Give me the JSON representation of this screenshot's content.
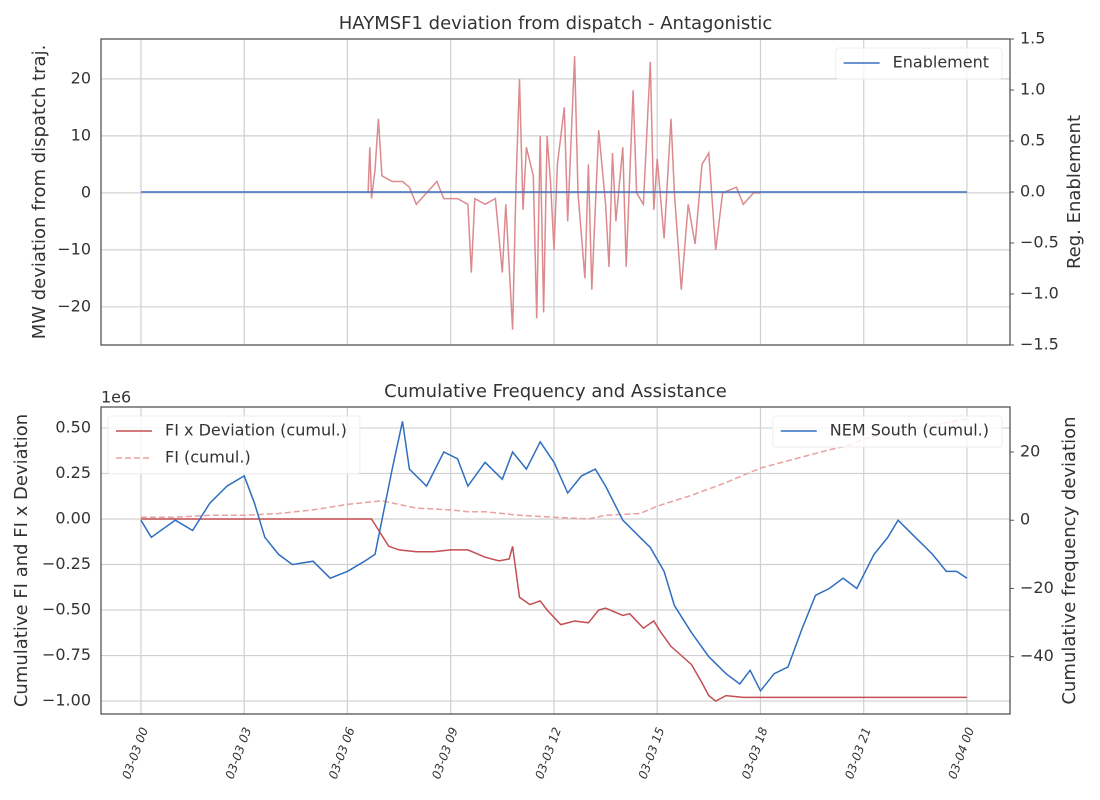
{
  "chart_data": [
    {
      "type": "line",
      "title": "HAYMSF1 deviation from dispatch - Antagonistic",
      "ylabel": "MW deviation from dispatch traj.",
      "y2label": "Reg. Enablement",
      "xlim": [
        -1.16,
        25.25
      ],
      "xticks": [
        0,
        3,
        6,
        9,
        12,
        15,
        18,
        21,
        24
      ],
      "ylim": [
        -26.7,
        27.0
      ],
      "yticks": [
        {
          "value": -20,
          "label": "−20"
        },
        {
          "value": -10,
          "label": "−10"
        },
        0,
        10,
        20
      ],
      "y2lim": [
        -1.5,
        1.5
      ],
      "y2ticks": [
        {
          "value": -1.5,
          "label": "−1.5"
        },
        {
          "value": -1,
          "label": "−1.0"
        },
        {
          "value": -0.5,
          "label": "−0.5"
        },
        {
          "value": 0,
          "label": "0.0"
        },
        0.5,
        {
          "value": 1,
          "label": "1.0"
        },
        1.5
      ],
      "grid": true,
      "legend": "upper right",
      "series": [
        {
          "color": "#dd8a8e",
          "x": [
            6.6,
            6.65,
            6.7,
            6.8,
            6.9,
            7.0,
            7.3,
            7.6,
            7.8,
            8.0,
            8.3,
            8.6,
            8.8,
            9.2,
            9.5,
            9.6,
            9.7,
            10.0,
            10.3,
            10.5,
            10.6,
            10.8,
            10.9,
            11.0,
            11.1,
            11.2,
            11.4,
            11.5,
            11.6,
            11.7,
            11.8,
            11.9,
            12.0,
            12.1,
            12.3,
            12.4,
            12.6,
            12.7,
            12.9,
            13.0,
            13.1,
            13.3,
            13.5,
            13.6,
            13.7,
            13.8,
            14.0,
            14.1,
            14.3,
            14.4,
            14.6,
            14.8,
            14.9,
            15.0,
            15.2,
            15.4,
            15.5,
            15.7,
            15.9,
            16.1,
            16.3,
            16.5,
            16.7,
            16.9,
            17.3,
            17.5,
            17.8,
            18.0
          ],
          "values": [
            0,
            8,
            -1,
            4,
            13,
            3,
            2,
            2,
            1,
            -2,
            0,
            2,
            -1,
            -1,
            -2,
            -14,
            -1,
            -2,
            -1,
            -14,
            -2,
            -24,
            2,
            20,
            -3,
            8,
            3,
            -22,
            10,
            -21,
            10,
            2,
            -10,
            5,
            15,
            -5,
            24,
            0,
            -15,
            5,
            -17,
            11,
            -2,
            -13,
            7,
            -5,
            8,
            -13,
            18,
            0,
            -2,
            23,
            -3,
            6,
            -8,
            13,
            0,
            -17,
            -2,
            -9,
            5,
            7,
            -10,
            0,
            1,
            -2,
            0,
            0
          ]
        },
        {
          "name": "Enablement",
          "color": "#3d6fbf",
          "axis": "y2",
          "x": [
            0,
            24
          ],
          "values": [
            0,
            0
          ]
        }
      ]
    },
    {
      "type": "line",
      "title": "Cumulative Frequency and Assistance",
      "ylabel": "Cumulative FI and FI x Deviation",
      "y2label": "Cumulative frequency deviation",
      "y_offset_label": "1e6",
      "xlim": [
        -1.16,
        25.25
      ],
      "xticks": [
        {
          "value": 0,
          "label": "03-03 00"
        },
        {
          "value": 3,
          "label": "03-03 03"
        },
        {
          "value": 6,
          "label": "03-03 06"
        },
        {
          "value": 9,
          "label": "03-03 09"
        },
        {
          "value": 12,
          "label": "03-03 12"
        },
        {
          "value": 15,
          "label": "03-03 15"
        },
        {
          "value": 18,
          "label": "03-03 18"
        },
        {
          "value": 21,
          "label": "03-03 21"
        },
        {
          "value": 24,
          "label": "03-04 00"
        }
      ],
      "ylim": [
        -1.071,
        0.615
      ],
      "yticks": [
        {
          "value": -1,
          "label": "−1.00"
        },
        {
          "value": -0.75,
          "label": "−0.75"
        },
        {
          "value": -0.5,
          "label": "−0.50"
        },
        {
          "value": -0.25,
          "label": "−0.25"
        },
        {
          "value": 0,
          "label": "0.00"
        },
        0.25,
        {
          "value": 0.5,
          "label": "0.50"
        }
      ],
      "y2lim": [
        -56.8,
        33.2
      ],
      "y2ticks": [
        {
          "value": -40,
          "label": "−40"
        },
        {
          "value": -20,
          "label": "−20"
        },
        0,
        20
      ],
      "grid": true,
      "legend": "upper left",
      "legend2": "upper right",
      "series": [
        {
          "name": "FI x Deviation (cumul.)",
          "color": "#c44e52",
          "x": [
            0,
            3,
            6,
            6.7,
            6.9,
            7.2,
            7.5,
            8,
            8.5,
            9,
            9.5,
            10,
            10.4,
            10.7,
            10.8,
            11,
            11.3,
            11.6,
            11.8,
            12.2,
            12.6,
            13,
            13.3,
            13.5,
            14,
            14.2,
            14.6,
            14.9,
            15.1,
            15.4,
            15.7,
            16,
            16.3,
            16.5,
            16.7,
            17,
            17.5,
            18,
            20,
            24
          ],
          "values": [
            0,
            0,
            0,
            0,
            -0.06,
            -0.15,
            -0.17,
            -0.18,
            -0.18,
            -0.17,
            -0.17,
            -0.21,
            -0.23,
            -0.22,
            -0.15,
            -0.43,
            -0.47,
            -0.45,
            -0.5,
            -0.58,
            -0.56,
            -0.57,
            -0.5,
            -0.49,
            -0.53,
            -0.52,
            -0.6,
            -0.56,
            -0.62,
            -0.7,
            -0.75,
            -0.8,
            -0.9,
            -0.97,
            -1.0,
            -0.97,
            -0.98,
            -0.98,
            -0.98,
            -0.98
          ]
        },
        {
          "name": "FI (cumul.)",
          "color": "#e8a0a0",
          "dash": true,
          "x": [
            0,
            1,
            2,
            3,
            4,
            5,
            6,
            7,
            8,
            9,
            9.5,
            10,
            11,
            12,
            13,
            13.5,
            14.5,
            15,
            16,
            17,
            18,
            19,
            20,
            20.5,
            21,
            22,
            24
          ],
          "values": [
            0.01,
            0.01,
            0.02,
            0.02,
            0.03,
            0.05,
            0.08,
            0.1,
            0.06,
            0.05,
            0.04,
            0.04,
            0.02,
            0.01,
            0.0,
            0.02,
            0.03,
            0.07,
            0.13,
            0.2,
            0.28,
            0.33,
            0.38,
            0.4,
            0.44,
            0.48,
            0.55
          ]
        },
        {
          "name": "NEM South (cumul.)",
          "color": "#2f6ec0",
          "axis": "y2",
          "x": [
            0,
            0.3,
            1,
            1.5,
            2,
            2.5,
            3,
            3.3,
            3.6,
            4,
            4.4,
            5,
            5.5,
            6,
            6.5,
            6.8,
            7,
            7.3,
            7.6,
            7.8,
            8.3,
            8.8,
            9.2,
            9.5,
            10,
            10.5,
            10.8,
            11.2,
            11.6,
            12,
            12.4,
            12.8,
            13.2,
            13.5,
            14,
            14.5,
            14.8,
            15.2,
            15.5,
            16,
            16.5,
            17,
            17.4,
            17.7,
            18,
            18.4,
            18.8,
            19.2,
            19.6,
            20,
            20.4,
            20.8,
            21.3,
            21.7,
            22,
            22.5,
            23,
            23.4,
            23.7,
            24
          ],
          "values": [
            0,
            -5,
            0,
            -3,
            5,
            10,
            13,
            5,
            -5,
            -10,
            -13,
            -12,
            -17,
            -15,
            -12,
            -10,
            0,
            15,
            29,
            15,
            10,
            20,
            18,
            10,
            17,
            12,
            20,
            15,
            23,
            17,
            8,
            13,
            15,
            10,
            0,
            -5,
            -8,
            -15,
            -25,
            -33,
            -40,
            -45,
            -48,
            -44,
            -50,
            -45,
            -43,
            -32,
            -22,
            -20,
            -17,
            -20,
            -10,
            -5,
            0,
            -5,
            -10,
            -15,
            -15,
            -17
          ]
        }
      ]
    }
  ]
}
